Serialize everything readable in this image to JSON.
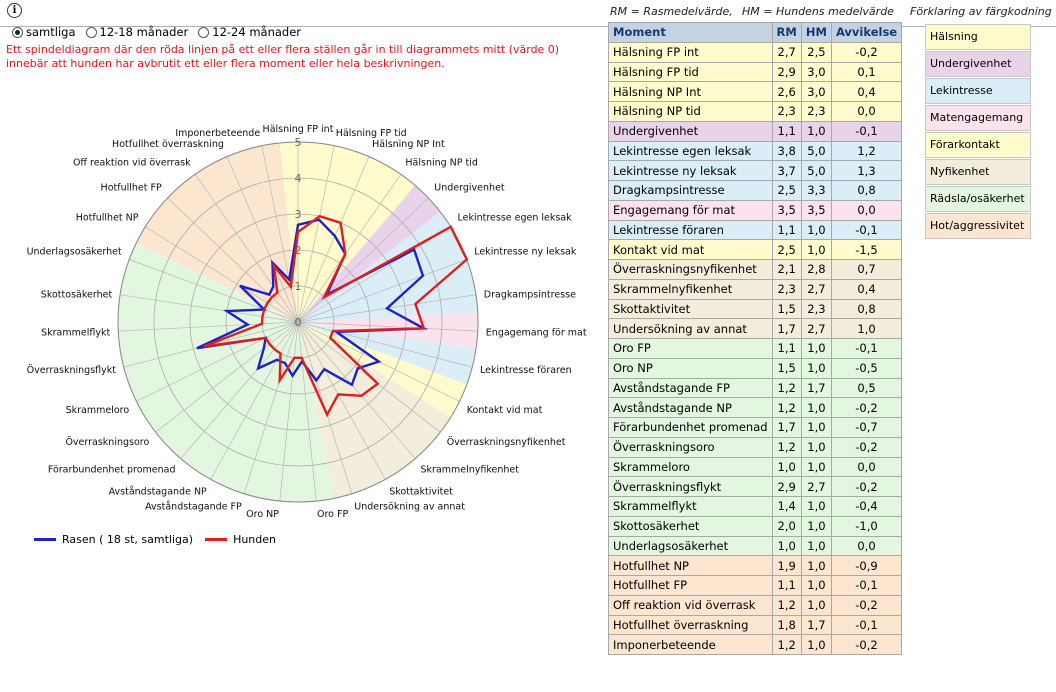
{
  "header": {
    "info_icon": "i",
    "radio_options": [
      {
        "label": "samtliga",
        "selected": true
      },
      {
        "label": "12-18 månader",
        "selected": false
      },
      {
        "label": "12-24 månader",
        "selected": false
      }
    ],
    "warning": "Ett spindeldiagram där den röda linjen på ett eller flera ställen går in till diagrammets mitt (värde 0) innebär att hunden har avbrutit ett eller flera moment eller hela beskrivningen.",
    "rm_def": "RM = Rasmedelvärde,",
    "hm_def": "HM = Hundens medelvärde",
    "color_legend_title": "Förklaring av färgkodning"
  },
  "categories": [
    {
      "name": "Hälsning",
      "color": "#fffbcc"
    },
    {
      "name": "Undergivenhet",
      "color": "#e8d3ea"
    },
    {
      "name": "Lekintresse",
      "color": "#dbeef8"
    },
    {
      "name": "Matengagemang",
      "color": "#fbe3ee"
    },
    {
      "name": "Förarkontakt",
      "color": "#fffbcc"
    },
    {
      "name": "Nyfikenhet",
      "color": "#f2eedb"
    },
    {
      "name": "Rädsla/osäkerhet",
      "color": "#e3f6e0"
    },
    {
      "name": "Hot/aggressivitet",
      "color": "#fde6cf"
    }
  ],
  "table": {
    "headers": [
      "Moment",
      "RM",
      "HM",
      "Avvikelse"
    ],
    "rows": [
      {
        "name": "Hälsning FP int",
        "rm": "2,7",
        "hm": "2,5",
        "dev": "-0,2",
        "cat": 0
      },
      {
        "name": "Hälsning FP tid",
        "rm": "2,9",
        "hm": "3,0",
        "dev": "0,1",
        "cat": 0
      },
      {
        "name": "Hälsning NP Int",
        "rm": "2,6",
        "hm": "3,0",
        "dev": "0,4",
        "cat": 0
      },
      {
        "name": "Hälsning NP tid",
        "rm": "2,3",
        "hm": "2,3",
        "dev": "0,0",
        "cat": 0
      },
      {
        "name": "Undergivenhet",
        "rm": "1,1",
        "hm": "1,0",
        "dev": "-0,1",
        "cat": 1
      },
      {
        "name": "Lekintresse egen leksak",
        "rm": "3,8",
        "hm": "5,0",
        "dev": "1,2",
        "cat": 2
      },
      {
        "name": "Lekintresse ny leksak",
        "rm": "3,7",
        "hm": "5,0",
        "dev": "1,3",
        "cat": 2
      },
      {
        "name": "Dragkampsintresse",
        "rm": "2,5",
        "hm": "3,3",
        "dev": "0,8",
        "cat": 2
      },
      {
        "name": "Engagemang för mat",
        "rm": "3,5",
        "hm": "3,5",
        "dev": "0,0",
        "cat": 3
      },
      {
        "name": "Lekintresse föraren",
        "rm": "1,1",
        "hm": "1,0",
        "dev": "-0,1",
        "cat": 2
      },
      {
        "name": "Kontakt vid mat",
        "rm": "2,5",
        "hm": "1,0",
        "dev": "-1,5",
        "cat": 4
      },
      {
        "name": "Överraskningsnyfikenhet",
        "rm": "2,1",
        "hm": "2,8",
        "dev": "0,7",
        "cat": 5
      },
      {
        "name": "Skrammelnyfikenhet",
        "rm": "2,3",
        "hm": "2,7",
        "dev": "0,4",
        "cat": 5
      },
      {
        "name": "Skottaktivitet",
        "rm": "1,5",
        "hm": "2,3",
        "dev": "0,8",
        "cat": 5
      },
      {
        "name": "Undersökning av annat",
        "rm": "1,7",
        "hm": "2,7",
        "dev": "1,0",
        "cat": 5
      },
      {
        "name": "Oro FP",
        "rm": "1,1",
        "hm": "1,0",
        "dev": "-0,1",
        "cat": 6
      },
      {
        "name": "Oro NP",
        "rm": "1,5",
        "hm": "1,0",
        "dev": "-0,5",
        "cat": 6
      },
      {
        "name": "Avståndstagande FP",
        "rm": "1,2",
        "hm": "1,7",
        "dev": "0,5",
        "cat": 6
      },
      {
        "name": "Avståndstagande NP",
        "rm": "1,2",
        "hm": "1,0",
        "dev": "-0,2",
        "cat": 6
      },
      {
        "name": "Förarbundenhet promenad",
        "rm": "1,7",
        "hm": "1,0",
        "dev": "-0,7",
        "cat": 6
      },
      {
        "name": "Överraskningsoro",
        "rm": "1,2",
        "hm": "1,0",
        "dev": "-0,2",
        "cat": 6
      },
      {
        "name": "Skrammeloro",
        "rm": "1,0",
        "hm": "1,0",
        "dev": "0,0",
        "cat": 6
      },
      {
        "name": "Överraskningsflykt",
        "rm": "2,9",
        "hm": "2,7",
        "dev": "-0,2",
        "cat": 6
      },
      {
        "name": "Skrammelflykt",
        "rm": "1,4",
        "hm": "1,0",
        "dev": "-0,4",
        "cat": 6
      },
      {
        "name": "Skottosäkerhet",
        "rm": "2,0",
        "hm": "1,0",
        "dev": "-1,0",
        "cat": 6
      },
      {
        "name": "Underlagsosäkerhet",
        "rm": "1,0",
        "hm": "1,0",
        "dev": "0,0",
        "cat": 6
      },
      {
        "name": "Hotfullhet NP",
        "rm": "1,9",
        "hm": "1,0",
        "dev": "-0,9",
        "cat": 7
      },
      {
        "name": "Hotfullhet FP",
        "rm": "1,1",
        "hm": "1,0",
        "dev": "-0,1",
        "cat": 7
      },
      {
        "name": "Off reaktion vid överrask",
        "rm": "1,2",
        "hm": "1,0",
        "dev": "-0,2",
        "cat": 7
      },
      {
        "name": "Hotfullhet överraskning",
        "rm": "1,8",
        "hm": "1,7",
        "dev": "-0,1",
        "cat": 7
      },
      {
        "name": "Imponerbeteende",
        "rm": "1,2",
        "hm": "1,0",
        "dev": "-0,2",
        "cat": 7
      }
    ]
  },
  "chart_data": {
    "type": "radar",
    "axis_range": [
      0,
      5
    ],
    "tick_labels": [
      "0",
      "1",
      "2",
      "3",
      "4",
      "5"
    ],
    "categories": [
      "Hälsning FP int",
      "Hälsning FP tid",
      "Hälsning NP Int",
      "Hälsning NP tid",
      "Undergivenhet",
      "Lekintresse egen leksak",
      "Lekintresse ny leksak",
      "Dragkampsintresse",
      "Engagemang för mat",
      "Lekintresse föraren",
      "Kontakt vid mat",
      "Överraskningsnyfikenhet",
      "Skrammelnyfikenhet",
      "Skottaktivitet",
      "Undersökning av annat",
      "Oro FP",
      "Oro NP",
      "Avståndstagande FP",
      "Avståndstagande NP",
      "Förarbundenhet promenad",
      "Överraskningsoro",
      "Skrammeloro",
      "Överraskningsflykt",
      "Skrammelflykt",
      "Skottosäkerhet",
      "Underlagsosäkerhet",
      "Hotfullhet NP",
      "Hotfullhet FP",
      "Off reaktion vid överrask",
      "Hotfullhet överraskning",
      "Imponerbeteende"
    ],
    "series": [
      {
        "name": "Rasen ( 18 st, samtliga)",
        "color": "#1a22c8",
        "values": [
          2.7,
          2.9,
          2.6,
          2.3,
          1.1,
          3.8,
          3.7,
          2.5,
          3.5,
          1.1,
          2.5,
          2.1,
          2.3,
          1.5,
          1.7,
          1.1,
          1.5,
          1.2,
          1.2,
          1.7,
          1.2,
          1.0,
          2.9,
          1.4,
          2.0,
          1.0,
          1.9,
          1.1,
          1.2,
          1.8,
          1.2
        ]
      },
      {
        "name": "Hunden",
        "color": "#e01e1e",
        "values": [
          2.5,
          3.0,
          3.0,
          2.3,
          1.0,
          5.0,
          5.0,
          3.3,
          3.5,
          1.0,
          1.0,
          2.8,
          2.7,
          2.3,
          2.7,
          1.0,
          1.0,
          1.7,
          1.0,
          1.0,
          1.0,
          1.0,
          2.7,
          1.0,
          1.0,
          1.0,
          1.0,
          1.0,
          1.0,
          1.7,
          1.0
        ]
      }
    ],
    "category_groups": [
      0,
      0,
      0,
      0,
      1,
      2,
      2,
      2,
      3,
      2,
      4,
      5,
      5,
      5,
      5,
      6,
      6,
      6,
      6,
      6,
      6,
      6,
      6,
      6,
      6,
      6,
      7,
      7,
      7,
      7,
      7
    ],
    "legend_position": "bottom-left",
    "grid": true
  }
}
